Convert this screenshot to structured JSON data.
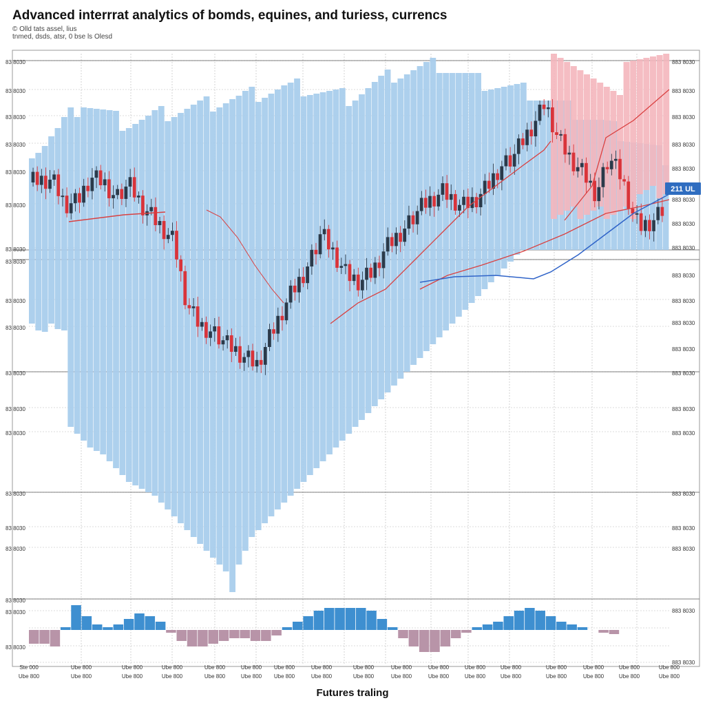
{
  "title": "Advanced interrrat analytics of bomds, equines, and turiess, currencs",
  "subtitle_lines": [
    "© Olld tats assel, lius",
    "tnmed, dsds, atsr, 0 bse ls Olesd"
  ],
  "xlabel": "Futures traling",
  "current_value_badge": "211 UL",
  "colors": {
    "volume_blue": "#a9cdec",
    "volume_pink": "#f4b6bd",
    "candle_up": "#2b3a4a",
    "candle_down": "#d9343a",
    "ma_red": "#d94040",
    "ma_blue": "#2f63c8",
    "osc_blue": "#3e8fd0",
    "osc_mauve": "#b894a8",
    "badge": "#2f6dc0"
  },
  "chart_data": [
    {
      "type": "candlestick",
      "title": "Advanced interrrat analytics of bomds, equines, and turiess, currencs",
      "xlabel": "Futures traling",
      "ylabel": "",
      "grid": true,
      "y_tick_labels_left": [
        "83 8030",
        "83 8030",
        "83 8030",
        "83 8030",
        "83 8030",
        "83 8030",
        "83 8030",
        "83 8030",
        "83 8030",
        "83 8030",
        "83 8030",
        "83 8030",
        "83 8030",
        "83 8030",
        "83 8030",
        "83 8030",
        "83 8030"
      ],
      "y_tick_labels_right": [
        "883 8030",
        "883 8030",
        "883 8030",
        "883 8030",
        "883 8030",
        "883 8030",
        "883 8030",
        "883 8030",
        "883 8030",
        "883 8030",
        "883 8030",
        "883 8030",
        "883 8030",
        "883 8030",
        "883 8030",
        "883 8030",
        "883 8030",
        "883 8030",
        "883 8030"
      ],
      "x_tick_labels": [
        [
          "Ste 000",
          "Ube 800"
        ],
        [
          "Ube 800",
          "Ube 800"
        ],
        [
          "Ube 800",
          "Ube 800"
        ],
        [
          "Ube 800",
          "Ube 800"
        ],
        [
          "Ube 800",
          "Ube 800"
        ],
        [
          "Ube 800",
          "Ube 800"
        ],
        [
          "Ube 800",
          "Ube 800"
        ],
        [
          "Ube 800",
          "Ube 800"
        ],
        [
          "Ube 800",
          "Ube 800"
        ],
        [
          "Ube 800",
          "Ube 800"
        ],
        [
          "Ube 800",
          "Ube 800"
        ],
        [
          "Ube 800",
          "Ube 800"
        ],
        [
          "Ube 800",
          "Ube 800"
        ],
        [
          "Ube 800",
          "Ube 800"
        ],
        [
          "Ube 800",
          "Ube 800"
        ],
        [
          "Ube 800",
          "Ube 800"
        ],
        [
          "Ube 800",
          "Ube 800"
        ]
      ],
      "close": [
        262,
        265,
        272,
        280,
        292,
        298,
        305,
        308,
        300,
        290,
        282,
        278,
        275,
        268,
        262,
        258,
        260,
        265,
        270,
        275,
        272,
        266,
        260,
        255,
        258,
        262,
        268,
        272,
        275,
        270,
        262,
        255,
        248,
        240,
        235,
        230,
        228,
        226,
        230,
        236,
        244,
        250,
        258,
        262,
        260,
        250,
        240,
        232,
        226,
        222,
        225,
        228,
        235,
        242,
        250,
        258,
        266,
        270,
        275,
        272,
        268,
        262,
        258,
        262,
        268,
        275,
        282,
        290,
        296,
        300,
        304,
        306,
        300,
        292,
        286,
        280,
        278,
        282,
        288,
        294,
        300,
        306,
        312,
        318,
        322,
        320,
        314,
        308,
        300,
        294,
        290,
        288,
        292,
        298,
        305,
        312,
        316,
        320,
        318
      ],
      "volume_top": [
        240,
        236,
        230,
        220,
        212,
        200,
        190,
        180,
        170,
        175,
        180,
        185,
        190,
        195,
        200,
        200,
        198,
        196,
        194,
        190,
        188,
        186,
        184,
        182,
        180,
        178,
        176,
        174,
        172,
        170,
        168,
        166,
        165,
        162,
        160,
        158,
        156,
        154,
        152,
        150,
        150,
        148,
        150,
        152,
        154,
        156,
        158,
        160,
        162,
        164,
        160,
        155,
        150,
        145,
        140,
        135,
        130,
        128,
        126,
        124,
        122,
        120,
        118,
        116,
        120,
        124,
        128,
        132,
        136,
        140,
        142,
        144,
        146,
        148,
        150,
        152,
        154,
        156,
        160,
        164,
        168,
        172,
        176,
        180,
        184,
        188,
        192,
        196,
        200,
        205,
        210,
        215,
        220,
        225,
        230,
        235,
        240,
        245,
        250
      ],
      "volume_bottom_depth": [
        470,
        480,
        482,
        470,
        478,
        480,
        620,
        630,
        640,
        650,
        655,
        660,
        670,
        680,
        690,
        700,
        705,
        710,
        715,
        720,
        730,
        740,
        750,
        760,
        770,
        780,
        790,
        800,
        810,
        820,
        830,
        860,
        820,
        800,
        780,
        770,
        760,
        750,
        740,
        730,
        720,
        710,
        700,
        690,
        680,
        670,
        660,
        650,
        640,
        630,
        620,
        610,
        600,
        590,
        580,
        570,
        560,
        550,
        540,
        530,
        520,
        510,
        500,
        490,
        480,
        470,
        460,
        450,
        440,
        430,
        420,
        410,
        400,
        390,
        380,
        370,
        360,
        350,
        340,
        330,
        320,
        310,
        300,
        290,
        280,
        270,
        260,
        250,
        240,
        230,
        220,
        210,
        200,
        190,
        180,
        170,
        160,
        150,
        140
      ],
      "ma_red": [
        320,
        318,
        316,
        314,
        313,
        312,
        311,
        310,
        310,
        311,
        312,
        314,
        318,
        325,
        335,
        348,
        362,
        378,
        392,
        404,
        412,
        418,
        418,
        412,
        404,
        395,
        386,
        376,
        366,
        356,
        345,
        334,
        322,
        312,
        302,
        292,
        282,
        272,
        262,
        252,
        245,
        240,
        236,
        232,
        228,
        222,
        214,
        206,
        196,
        186,
        175,
        164,
        152,
        140
      ],
      "ma_blue": [
        420,
        418,
        414,
        408,
        404,
        400,
        398,
        397,
        396,
        396,
        397,
        398,
        400,
        402,
        404,
        404,
        400,
        392,
        384,
        376,
        368,
        360,
        350,
        338,
        326,
        314,
        304,
        296,
        290,
        286,
        283,
        280
      ],
      "oscillator": [
        -0.5,
        -0.5,
        -0.6,
        0.1,
        0.9,
        0.5,
        0.2,
        0.1,
        0.2,
        0.4,
        0.6,
        0.5,
        0.3,
        -0.1,
        -0.4,
        -0.6,
        -0.6,
        -0.5,
        -0.4,
        -0.3,
        -0.3,
        -0.4,
        -0.4,
        -0.2,
        0.1,
        0.3,
        0.5,
        0.7,
        0.8,
        0.8,
        0.8,
        0.8,
        0.7,
        0.4,
        0.1,
        -0.3,
        -0.6,
        -0.8,
        -0.8,
        -0.6,
        -0.3,
        -0.1,
        0.1,
        0.2,
        0.3,
        0.5,
        0.7,
        0.8,
        0.7,
        0.5,
        0.3,
        0.2,
        0.1,
        0.0,
        -0.1,
        -0.15
      ]
    }
  ]
}
